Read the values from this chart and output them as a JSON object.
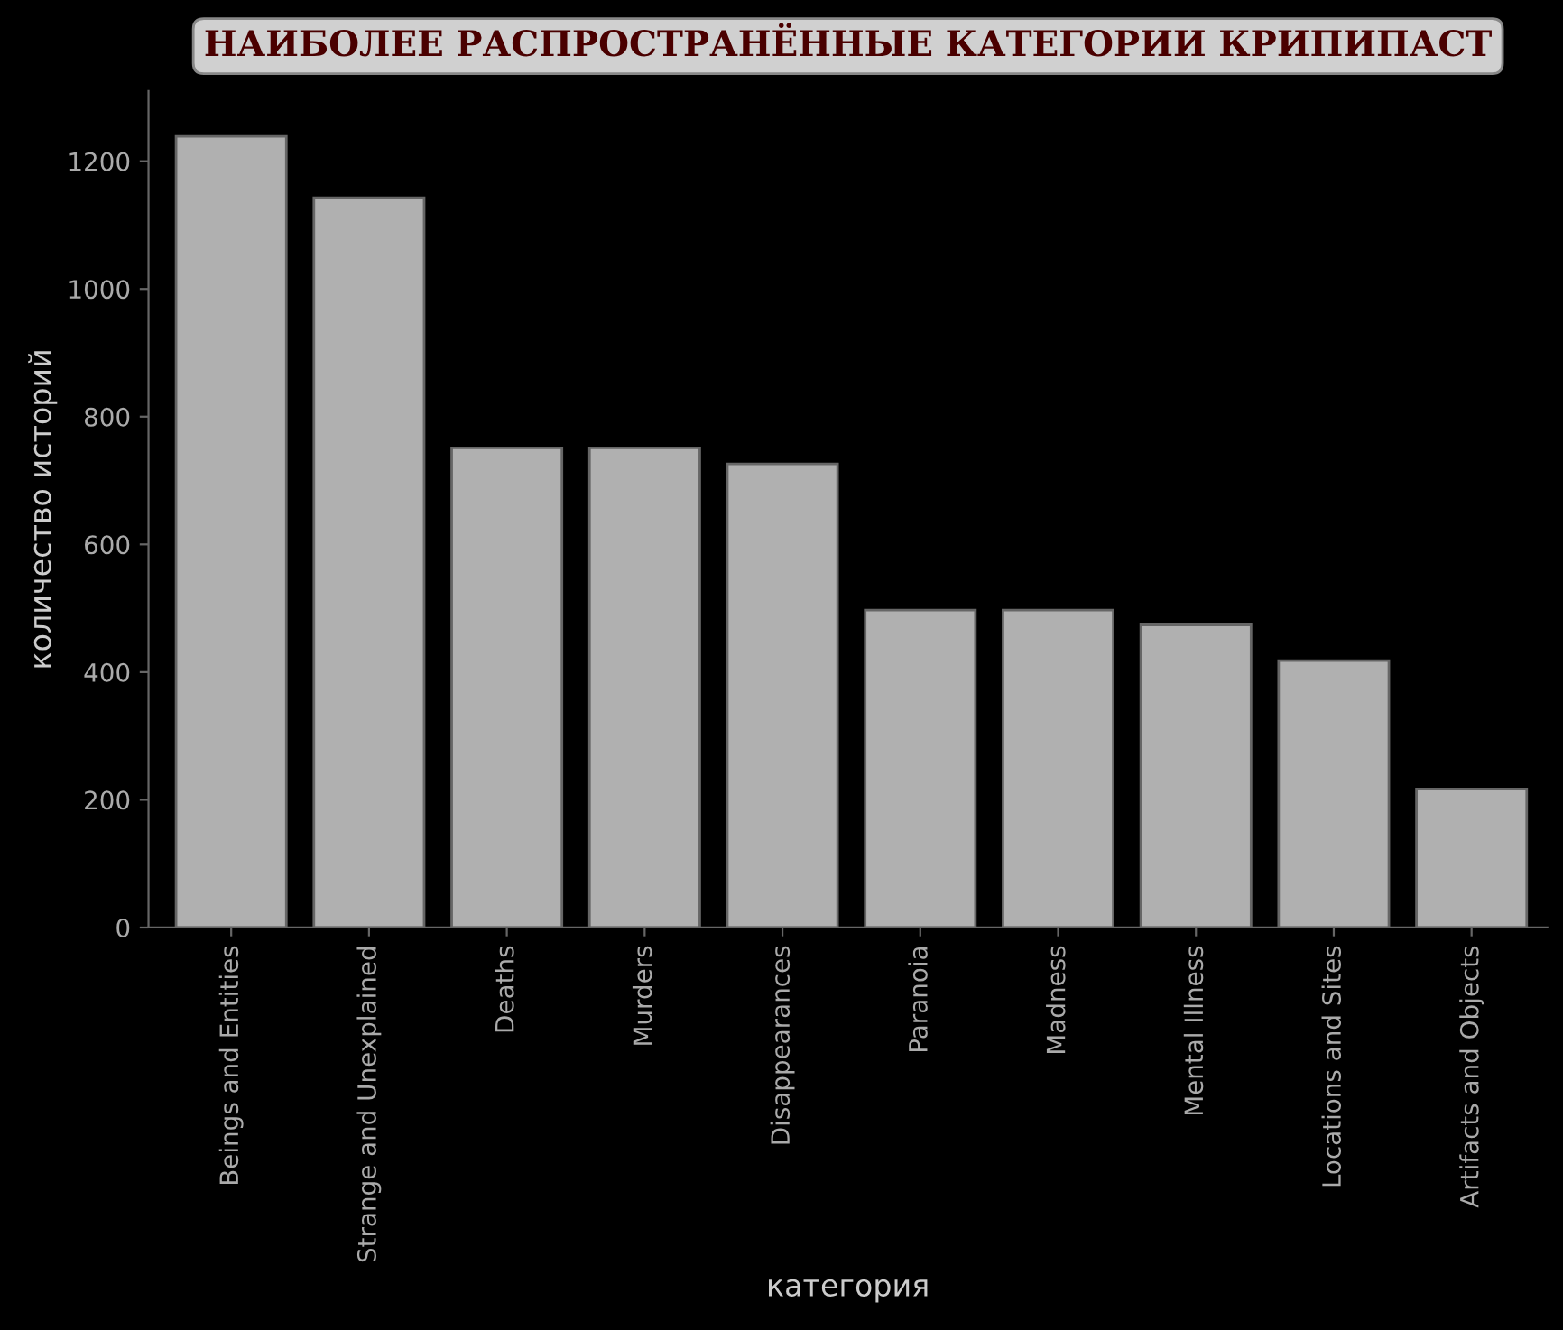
{
  "chart_data": {
    "type": "bar",
    "title": "НАИБОЛЕЕ РАСПРОСТРАНЁННЫЕ КАТЕГОРИИ КРИПИПАСТ",
    "xlabel": "категория",
    "ylabel": "количество историй",
    "categories": [
      "Beings and Entities",
      "Strange and Unexplained",
      "Deaths",
      "Murders",
      "Disappearances",
      "Paranoia",
      "Madness",
      "Mental Illness",
      "Locations and Sites",
      "Artifacts and Objects"
    ],
    "values": [
      1239,
      1143,
      751,
      751,
      726,
      497,
      497,
      474,
      418,
      217
    ],
    "color": "#b0b0b0",
    "ylim": [
      0,
      1310
    ],
    "yticks": [
      0,
      200,
      400,
      600,
      800,
      1000,
      1200
    ],
    "grid": false,
    "legend": false
  }
}
